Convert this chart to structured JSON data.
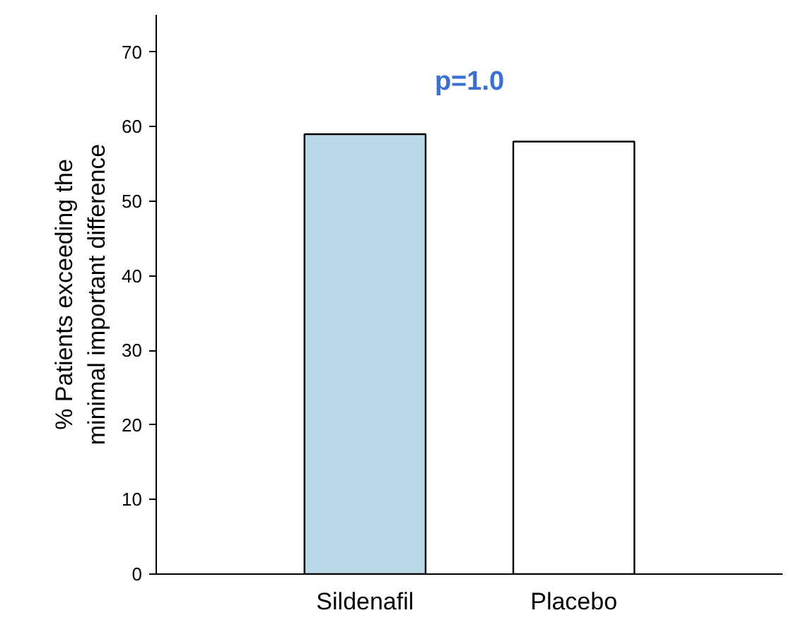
{
  "chart_data": {
    "type": "bar",
    "ylabel": "% Patients exceeding the\nminimal important difference",
    "categories": [
      "Sildenafil",
      "Placebo"
    ],
    "values": [
      59,
      58
    ],
    "colors": [
      "#b8d8e8",
      "#ffffff"
    ],
    "ylim": [
      0,
      75
    ],
    "yticks": [
      0,
      10,
      20,
      30,
      40,
      50,
      60,
      70
    ],
    "grid": false,
    "annotations": [
      "p=1.0"
    ]
  }
}
